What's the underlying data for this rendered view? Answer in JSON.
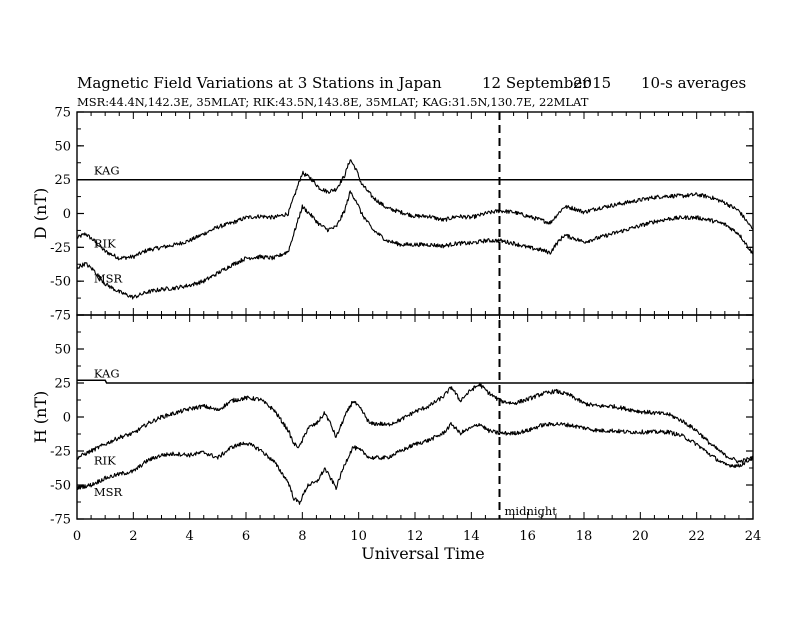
{
  "header": {
    "title": "Magnetic Field Variations at 3 Stations in Japan",
    "date_day_month": "12 September",
    "date_year": "2015",
    "averaging": "10-s averages",
    "stations_line": "MSR:44.4N,142.3E, 35MLAT;  RIK:43.5N,143.8E, 35MLAT;  KAG:31.5N,130.7E, 22MLAT"
  },
  "colors": {
    "line": "#000000",
    "background": "#ffffff"
  },
  "chart_data": {
    "type": "line",
    "xlabel": "Universal Time",
    "xlim": [
      0,
      24
    ],
    "xticks": [
      0,
      2,
      4,
      6,
      8,
      10,
      12,
      14,
      16,
      18,
      20,
      22,
      24
    ],
    "grid": false,
    "midnight": {
      "x": 15,
      "label": "midnight"
    },
    "panels": [
      {
        "id": "D",
        "ylabel": "D (nT)",
        "ylim": [
          -75,
          75
        ],
        "yticks": [
          75,
          50,
          25,
          0,
          -25,
          -50,
          -75
        ],
        "series": [
          {
            "name": "KAG",
            "label_at": [
              0.6,
              29
            ],
            "points": [
              [
                0,
                25
              ],
              [
                24,
                25
              ]
            ]
          },
          {
            "name": "RIK",
            "label_at": [
              0.6,
              -25
            ],
            "points": [
              [
                0,
                -18
              ],
              [
                0.3,
                -15
              ],
              [
                0.6,
                -20
              ],
              [
                1,
                -28
              ],
              [
                1.5,
                -33
              ],
              [
                2,
                -32
              ],
              [
                2.5,
                -27
              ],
              [
                3,
                -25
              ],
              [
                3.5,
                -23
              ],
              [
                4,
                -20
              ],
              [
                4.5,
                -15
              ],
              [
                5,
                -10
              ],
              [
                5.5,
                -7
              ],
              [
                6,
                -3
              ],
              [
                6.5,
                -2
              ],
              [
                7,
                -3
              ],
              [
                7.5,
                0
              ],
              [
                7.8,
                18
              ],
              [
                8,
                30
              ],
              [
                8.3,
                26
              ],
              [
                8.6,
                19
              ],
              [
                8.9,
                16
              ],
              [
                9.2,
                18
              ],
              [
                9.5,
                28
              ],
              [
                9.7,
                40
              ],
              [
                9.9,
                33
              ],
              [
                10.1,
                22
              ],
              [
                10.5,
                12
              ],
              [
                11,
                4
              ],
              [
                11.5,
                1
              ],
              [
                12,
                -2
              ],
              [
                12.5,
                -2
              ],
              [
                13,
                -5
              ],
              [
                13.5,
                -2
              ],
              [
                14,
                -3
              ],
              [
                14.5,
                0
              ],
              [
                15,
                2
              ],
              [
                15.5,
                1
              ],
              [
                16,
                -2
              ],
              [
                16.5,
                -5
              ],
              [
                16.8,
                -7
              ],
              [
                17,
                -2
              ],
              [
                17.3,
                5
              ],
              [
                17.6,
                4
              ],
              [
                18,
                1
              ],
              [
                18.5,
                4
              ],
              [
                19,
                6
              ],
              [
                19.5,
                8
              ],
              [
                20,
                10
              ],
              [
                20.5,
                12
              ],
              [
                21,
                13
              ],
              [
                21.5,
                13
              ],
              [
                22,
                14
              ],
              [
                22.5,
                12
              ],
              [
                23,
                8
              ],
              [
                23.5,
                2
              ],
              [
                24,
                -12
              ]
            ]
          },
          {
            "name": "MSR",
            "label_at": [
              0.6,
              -51
            ],
            "points": [
              [
                0,
                -40
              ],
              [
                0.3,
                -37
              ],
              [
                0.6,
                -42
              ],
              [
                1,
                -52
              ],
              [
                1.5,
                -58
              ],
              [
                2,
                -62
              ],
              [
                2.5,
                -58
              ],
              [
                3,
                -56
              ],
              [
                3.5,
                -55
              ],
              [
                4,
                -53
              ],
              [
                4.5,
                -50
              ],
              [
                5,
                -44
              ],
              [
                5.5,
                -38
              ],
              [
                6,
                -33
              ],
              [
                6.5,
                -32
              ],
              [
                7,
                -33
              ],
              [
                7.5,
                -28
              ],
              [
                7.8,
                -8
              ],
              [
                8,
                5
              ],
              [
                8.3,
                -1
              ],
              [
                8.6,
                -8
              ],
              [
                8.9,
                -12
              ],
              [
                9.2,
                -10
              ],
              [
                9.5,
                2
              ],
              [
                9.7,
                16
              ],
              [
                9.9,
                10
              ],
              [
                10.1,
                0
              ],
              [
                10.5,
                -12
              ],
              [
                11,
                -20
              ],
              [
                11.5,
                -23
              ],
              [
                12,
                -23
              ],
              [
                12.5,
                -23
              ],
              [
                13,
                -24
              ],
              [
                13.5,
                -22
              ],
              [
                14,
                -22
              ],
              [
                14.5,
                -20
              ],
              [
                15,
                -20
              ],
              [
                15.5,
                -22
              ],
              [
                16,
                -25
              ],
              [
                16.5,
                -27
              ],
              [
                16.8,
                -29
              ],
              [
                17,
                -23
              ],
              [
                17.3,
                -16
              ],
              [
                17.6,
                -18
              ],
              [
                18,
                -21
              ],
              [
                18.5,
                -18
              ],
              [
                19,
                -15
              ],
              [
                19.5,
                -12
              ],
              [
                20,
                -9
              ],
              [
                20.5,
                -6
              ],
              [
                21,
                -4
              ],
              [
                21.5,
                -3
              ],
              [
                22,
                -3
              ],
              [
                22.5,
                -5
              ],
              [
                23,
                -8
              ],
              [
                23.5,
                -15
              ],
              [
                24,
                -30
              ]
            ]
          }
        ]
      },
      {
        "id": "H",
        "ylabel": "H (nT)",
        "ylim": [
          -75,
          75
        ],
        "yticks": [
          75,
          50,
          25,
          0,
          -25,
          -50,
          -75
        ],
        "series": [
          {
            "name": "KAG",
            "label_at": [
              0.6,
              29
            ],
            "points": [
              [
                0,
                27
              ],
              [
                1,
                27
              ],
              [
                1.05,
                25
              ],
              [
                24,
                25
              ],
              [
                24,
                28
              ]
            ]
          },
          {
            "name": "RIK",
            "label_at": [
              0.6,
              -35
            ],
            "points": [
              [
                0,
                -30
              ],
              [
                0.5,
                -25
              ],
              [
                1,
                -20
              ],
              [
                1.5,
                -15
              ],
              [
                2,
                -12
              ],
              [
                2.5,
                -5
              ],
              [
                3,
                0
              ],
              [
                3.5,
                3
              ],
              [
                4,
                6
              ],
              [
                4.5,
                8
              ],
              [
                5,
                5
              ],
              [
                5.5,
                12
              ],
              [
                6,
                14
              ],
              [
                6.5,
                13
              ],
              [
                7,
                5
              ],
              [
                7.5,
                -10
              ],
              [
                7.7,
                -20
              ],
              [
                7.9,
                -22
              ],
              [
                8.2,
                -8
              ],
              [
                8.5,
                -5
              ],
              [
                8.8,
                3
              ],
              [
                9,
                -5
              ],
              [
                9.2,
                -15
              ],
              [
                9.5,
                0
              ],
              [
                9.8,
                12
              ],
              [
                10.1,
                5
              ],
              [
                10.4,
                -5
              ],
              [
                10.8,
                -5
              ],
              [
                11,
                -6
              ],
              [
                11.5,
                -2
              ],
              [
                12,
                4
              ],
              [
                12.5,
                8
              ],
              [
                13,
                15
              ],
              [
                13.3,
                22
              ],
              [
                13.6,
                12
              ],
              [
                14,
                20
              ],
              [
                14.3,
                24
              ],
              [
                14.6,
                18
              ],
              [
                15,
                12
              ],
              [
                15.5,
                10
              ],
              [
                16,
                13
              ],
              [
                16.5,
                17
              ],
              [
                17,
                19
              ],
              [
                17.5,
                16
              ],
              [
                18,
                10
              ],
              [
                18.5,
                8
              ],
              [
                19,
                8
              ],
              [
                19.5,
                6
              ],
              [
                20,
                4
              ],
              [
                20.5,
                3
              ],
              [
                21,
                2
              ],
              [
                21.5,
                -3
              ],
              [
                22,
                -10
              ],
              [
                22.5,
                -20
              ],
              [
                23,
                -28
              ],
              [
                23.5,
                -33
              ],
              [
                24,
                -30
              ]
            ]
          },
          {
            "name": "MSR",
            "label_at": [
              0.6,
              -58
            ],
            "points": [
              [
                0,
                -52
              ],
              [
                0.5,
                -50
              ],
              [
                1,
                -45
              ],
              [
                1.5,
                -42
              ],
              [
                2,
                -40
              ],
              [
                2.5,
                -32
              ],
              [
                3,
                -28
              ],
              [
                3.5,
                -27
              ],
              [
                4,
                -28
              ],
              [
                4.5,
                -26
              ],
              [
                5,
                -30
              ],
              [
                5.5,
                -22
              ],
              [
                6,
                -19
              ],
              [
                6.5,
                -24
              ],
              [
                7,
                -33
              ],
              [
                7.5,
                -48
              ],
              [
                7.7,
                -60
              ],
              [
                7.9,
                -63
              ],
              [
                8.2,
                -50
              ],
              [
                8.5,
                -48
              ],
              [
                8.8,
                -38
              ],
              [
                9,
                -45
              ],
              [
                9.2,
                -52
              ],
              [
                9.5,
                -35
              ],
              [
                9.8,
                -22
              ],
              [
                10.1,
                -25
              ],
              [
                10.4,
                -30
              ],
              [
                10.8,
                -30
              ],
              [
                11,
                -30
              ],
              [
                11.5,
                -25
              ],
              [
                12,
                -20
              ],
              [
                12.5,
                -17
              ],
              [
                13,
                -12
              ],
              [
                13.3,
                -5
              ],
              [
                13.6,
                -12
              ],
              [
                14,
                -8
              ],
              [
                14.3,
                -5
              ],
              [
                14.6,
                -10
              ],
              [
                15,
                -12
              ],
              [
                15.5,
                -12
              ],
              [
                16,
                -10
              ],
              [
                16.5,
                -6
              ],
              [
                17,
                -5
              ],
              [
                17.5,
                -6
              ],
              [
                18,
                -8
              ],
              [
                18.5,
                -10
              ],
              [
                19,
                -10
              ],
              [
                19.5,
                -11
              ],
              [
                20,
                -11
              ],
              [
                20.5,
                -11
              ],
              [
                21,
                -11
              ],
              [
                21.5,
                -14
              ],
              [
                22,
                -20
              ],
              [
                22.5,
                -28
              ],
              [
                23,
                -35
              ],
              [
                23.5,
                -36
              ],
              [
                24,
                -30
              ]
            ]
          }
        ]
      }
    ]
  }
}
